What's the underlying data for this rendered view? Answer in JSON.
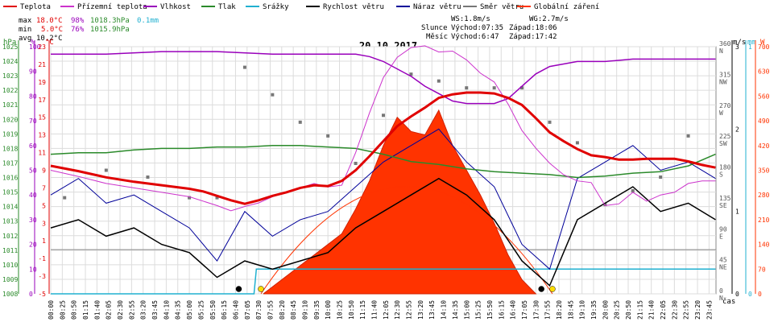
{
  "legend": [
    {
      "label": "Teplota",
      "color": "#e00000"
    },
    {
      "label": "Přízemní teplota",
      "color": "#cc33cc"
    },
    {
      "label": "Vlhkost",
      "color": "#9900bb"
    },
    {
      "label": "Tlak",
      "color": "#2a8a2a"
    },
    {
      "label": "Srážky",
      "color": "#20b0d0"
    },
    {
      "label": "Rychlost větru",
      "color": "#000000"
    },
    {
      "label": "Náraz větru",
      "color": "#000099"
    },
    {
      "label": "Směr větru",
      "color": "#777777"
    },
    {
      "label": "Globální záření",
      "color": "#ff3300"
    }
  ],
  "stats": {
    "max": {
      "label": "max",
      "temp": "18.0°C",
      "hum": "98%",
      "press": "1018.3hPa",
      "rain": "0.1mm"
    },
    "min": {
      "label": "min",
      "temp": "5.0°C",
      "hum": "76%",
      "press": "1015.9hPa"
    },
    "avg": {
      "label": "avg",
      "temp": "10.2°C"
    }
  },
  "info": {
    "ws": "WS:1.8m/s",
    "wg": "WG:2.7m/s",
    "sun_label": "Slunce",
    "sun_rise": "Východ:07:35",
    "sun_set": "Západ:18:06",
    "moon_label": "Měsíc",
    "moon_rise": "Východ:6:47",
    "moon_set": "Západ:17:42"
  },
  "axis_units": {
    "press": "hPa",
    "hum": "%",
    "temp": "°C",
    "wind": "m/s",
    "rain": "mm",
    "rad": "W",
    "time": "čas"
  },
  "chart_data": {
    "type": "line",
    "title": "20.10.2017",
    "x_ticks": [
      "00:00",
      "00:25",
      "00:50",
      "01:15",
      "01:40",
      "02:05",
      "02:30",
      "02:55",
      "03:20",
      "03:45",
      "04:10",
      "04:35",
      "05:00",
      "05:25",
      "05:50",
      "06:15",
      "06:40",
      "07:05",
      "07:30",
      "07:55",
      "08:20",
      "08:45",
      "09:10",
      "09:35",
      "10:00",
      "10:25",
      "10:50",
      "11:15",
      "11:40",
      "12:05",
      "12:30",
      "12:55",
      "13:20",
      "13:45",
      "14:10",
      "14:35",
      "15:00",
      "15:25",
      "15:50",
      "16:15",
      "16:40",
      "17:05",
      "17:30",
      "17:55",
      "18:20",
      "18:45",
      "19:10",
      "19:35",
      "20:00",
      "20:25",
      "20:50",
      "21:15",
      "21:40",
      "22:05",
      "22:30",
      "22:55",
      "23:20",
      "23:45"
    ],
    "axes": {
      "pressure_hPa": {
        "ticks": [
          "1008",
          "1009",
          "1010",
          "1011",
          "1012",
          "1013",
          "1014",
          "1015",
          "1016",
          "1017",
          "1018",
          "1019",
          "1020",
          "1021",
          "1022",
          "1023",
          "1024",
          "1025"
        ]
      },
      "humidity_pct": {
        "ticks": [
          "0",
          "10",
          "20",
          "30",
          "40",
          "50",
          "60",
          "70",
          "80",
          "90",
          "100"
        ]
      },
      "temperature_C": {
        "ticks": [
          "-5",
          "-3",
          "-1",
          "1",
          "3",
          "5",
          "7",
          "9",
          "11",
          "13",
          "15",
          "17",
          "19",
          "21",
          "23"
        ]
      },
      "wind_ms": {
        "ticks": [
          "0",
          "1",
          "2",
          "3"
        ]
      },
      "rain_mm": {
        "ticks": [
          "0",
          "1"
        ]
      },
      "direction": {
        "ticks": [
          "0",
          "45",
          "90",
          "135",
          "180",
          "225",
          "270",
          "315",
          "360"
        ],
        "labels": [
          "N",
          "NE",
          "E",
          "SE",
          "S",
          "SW",
          "W",
          "NW",
          "N"
        ]
      },
      "radiation_W": {
        "ticks": [
          "0",
          "70",
          "140",
          "210",
          "280",
          "350",
          "420",
          "490",
          "560",
          "630",
          "700"
        ]
      }
    },
    "series": [
      {
        "name": "Teplota",
        "unit": "°C",
        "color": "#e00000",
        "x": [
          "00:00",
          "01:00",
          "02:00",
          "03:00",
          "04:00",
          "05:00",
          "05:30",
          "06:00",
          "06:30",
          "07:00",
          "07:30",
          "08:00",
          "08:30",
          "09:00",
          "09:30",
          "10:00",
          "10:30",
          "11:00",
          "11:30",
          "12:00",
          "12:30",
          "13:00",
          "13:30",
          "14:00",
          "14:30",
          "15:00",
          "15:30",
          "16:00",
          "16:30",
          "17:00",
          "17:30",
          "18:00",
          "18:30",
          "19:00",
          "19:30",
          "20:00",
          "20:30",
          "21:00",
          "21:30",
          "22:00",
          "22:30",
          "23:00",
          "23:30",
          "23:59"
        ],
        "y": [
          9.5,
          8.9,
          8.2,
          7.7,
          7.3,
          6.9,
          6.6,
          6.1,
          5.6,
          5.2,
          5.6,
          6.1,
          6.5,
          7.0,
          7.3,
          7.2,
          7.8,
          9.0,
          10.6,
          12.3,
          14.0,
          15.1,
          16.1,
          17.2,
          17.6,
          17.8,
          17.8,
          17.7,
          17.2,
          16.4,
          14.9,
          13.3,
          12.3,
          11.4,
          10.7,
          10.5,
          10.2,
          10.2,
          10.3,
          10.3,
          10.3,
          10.0,
          9.6,
          9.3
        ]
      },
      {
        "name": "Přízemní teplota",
        "unit": "°C",
        "color": "#cc33cc",
        "x": [
          "00:00",
          "01:00",
          "02:00",
          "03:00",
          "04:00",
          "05:00",
          "06:00",
          "06:30",
          "07:00",
          "07:30",
          "08:00",
          "08:30",
          "09:00",
          "09:30",
          "10:00",
          "10:30",
          "11:00",
          "11:30",
          "12:00",
          "12:30",
          "13:00",
          "13:30",
          "14:00",
          "14:30",
          "15:00",
          "15:30",
          "16:00",
          "16:30",
          "17:00",
          "17:30",
          "18:00",
          "18:30",
          "19:00",
          "19:30",
          "20:00",
          "20:30",
          "21:00",
          "21:30",
          "22:00",
          "22:30",
          "23:00",
          "23:30",
          "23:59"
        ],
        "y": [
          9.0,
          8.3,
          7.5,
          7.0,
          6.5,
          6.0,
          5.0,
          4.4,
          4.9,
          5.3,
          6.0,
          6.5,
          7.0,
          7.5,
          7.1,
          7.3,
          11.0,
          15.5,
          19.5,
          21.8,
          22.9,
          23.1,
          22.4,
          22.5,
          21.5,
          20.0,
          19.0,
          16.5,
          13.5,
          11.5,
          9.8,
          8.5,
          7.8,
          7.6,
          5.0,
          5.2,
          6.5,
          5.5,
          6.2,
          6.5,
          7.5,
          7.8,
          7.8
        ]
      },
      {
        "name": "Vlhkost",
        "unit": "%",
        "color": "#9900bb",
        "x": [
          "00:00",
          "02:00",
          "04:00",
          "06:00",
          "08:00",
          "10:00",
          "11:00",
          "11:30",
          "12:00",
          "12:30",
          "13:00",
          "13:30",
          "14:00",
          "14:30",
          "15:00",
          "15:30",
          "16:00",
          "16:30",
          "17:00",
          "17:30",
          "18:00",
          "19:00",
          "20:00",
          "21:00",
          "22:00",
          "23:00",
          "23:59"
        ],
        "y": [
          97,
          97,
          98,
          98,
          97,
          97,
          97,
          96,
          94,
          91,
          88,
          84,
          81,
          78,
          77,
          77,
          77,
          79,
          84,
          89,
          92,
          94,
          94,
          95,
          95,
          95,
          95
        ]
      },
      {
        "name": "Tlak",
        "unit": "hPa",
        "color": "#2a8a2a",
        "x": [
          "00:00",
          "01:00",
          "02:00",
          "03:00",
          "04:00",
          "05:00",
          "06:00",
          "07:00",
          "08:00",
          "09:00",
          "10:00",
          "11:00",
          "12:00",
          "13:00",
          "14:00",
          "15:00",
          "16:00",
          "17:00",
          "18:00",
          "19:00",
          "20:00",
          "21:00",
          "22:00",
          "23:00",
          "23:59"
        ],
        "y": [
          1017.6,
          1017.7,
          1017.7,
          1017.9,
          1018.0,
          1018.0,
          1018.1,
          1018.1,
          1018.2,
          1018.2,
          1018.1,
          1018.0,
          1017.6,
          1017.1,
          1016.9,
          1016.6,
          1016.4,
          1016.3,
          1016.2,
          1016.0,
          1016.1,
          1016.3,
          1016.4,
          1016.8,
          1017.6
        ]
      },
      {
        "name": "Rychlost větru",
        "unit": "m/s",
        "color": "#000000",
        "x": [
          "00:00",
          "01:00",
          "02:00",
          "03:00",
          "04:00",
          "05:00",
          "06:00",
          "07:00",
          "08:00",
          "09:00",
          "10:00",
          "11:00",
          "12:00",
          "13:00",
          "14:00",
          "15:00",
          "16:00",
          "17:00",
          "18:00",
          "19:00",
          "20:00",
          "21:00",
          "22:00",
          "23:00",
          "23:59"
        ],
        "y": [
          0.8,
          0.9,
          0.7,
          0.8,
          0.6,
          0.5,
          0.2,
          0.4,
          0.3,
          0.4,
          0.5,
          0.8,
          1.0,
          1.2,
          1.4,
          1.2,
          0.9,
          0.4,
          0.1,
          0.9,
          1.1,
          1.3,
          1.0,
          1.1,
          0.9
        ]
      },
      {
        "name": "Náraz větru",
        "unit": "m/s",
        "color": "#000099",
        "x": [
          "00:00",
          "01:00",
          "02:00",
          "03:00",
          "04:00",
          "05:00",
          "06:00",
          "07:00",
          "08:00",
          "09:00",
          "10:00",
          "11:00",
          "12:00",
          "13:00",
          "14:00",
          "15:00",
          "16:00",
          "17:00",
          "18:00",
          "19:00",
          "20:00",
          "21:00",
          "22:00",
          "23:00",
          "23:59"
        ],
        "y": [
          1.2,
          1.4,
          1.1,
          1.2,
          1.0,
          0.8,
          0.4,
          1.0,
          0.7,
          0.9,
          1.0,
          1.3,
          1.6,
          1.8,
          2.0,
          1.6,
          1.3,
          0.6,
          0.3,
          1.4,
          1.6,
          1.8,
          1.5,
          1.6,
          1.4
        ]
      },
      {
        "name": "Srážky",
        "unit": "mm",
        "color": "#20b0d0",
        "x": [
          "00:00",
          "07:20",
          "07:25",
          "23:59"
        ],
        "y": [
          0,
          0,
          0.1,
          0.1
        ]
      },
      {
        "name": "Globální záření",
        "unit": "W",
        "color": "#ff3300",
        "x": [
          "07:40",
          "08:30",
          "09:30",
          "10:30",
          "11:00",
          "11:30",
          "12:00",
          "12:30",
          "13:00",
          "13:30",
          "14:00",
          "14:30",
          "15:00",
          "15:30",
          "16:00",
          "16:30",
          "17:00",
          "17:30"
        ],
        "y": [
          0,
          50,
          110,
          170,
          240,
          320,
          420,
          500,
          460,
          450,
          520,
          420,
          350,
          280,
          200,
          110,
          40,
          0
        ]
      },
      {
        "name": "Směr větru",
        "unit": "°",
        "color": "#777777",
        "x": [
          "00:30",
          "02:00",
          "03:30",
          "05:00",
          "06:00",
          "07:00",
          "08:00",
          "09:00",
          "10:00",
          "11:00",
          "12:00",
          "13:00",
          "14:00",
          "15:00",
          "16:00",
          "17:00",
          "18:00",
          "19:00",
          "20:00",
          "21:00",
          "22:00",
          "23:00"
        ],
        "y": [
          140,
          180,
          170,
          140,
          140,
          330,
          290,
          250,
          230,
          190,
          260,
          320,
          310,
          300,
          300,
          300,
          250,
          220,
          130,
          150,
          170,
          230
        ]
      }
    ]
  }
}
